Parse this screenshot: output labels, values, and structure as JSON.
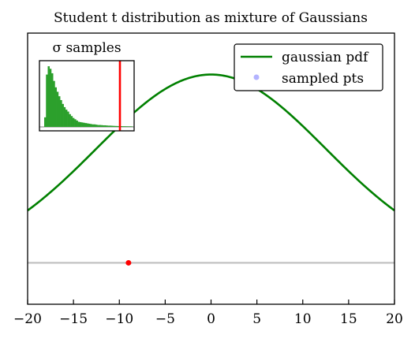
{
  "chart_data": {
    "type": "line",
    "title": "Student t distribution as mixture of Gaussians",
    "xlabel": "",
    "ylabel": "",
    "xlim": [
      -20,
      20
    ],
    "ylim": [
      -0.22,
      1.22
    ],
    "x_ticks": [
      -20,
      -15,
      -10,
      -5,
      0,
      5,
      10,
      15,
      20
    ],
    "x_tick_labels": [
      "−20",
      "−15",
      "−10",
      "−5",
      "0",
      "5",
      "10",
      "15",
      "20"
    ],
    "y_ticks_visible": false,
    "grid": false,
    "legend": {
      "position": "top-right",
      "entries": [
        {
          "label": "gaussian pdf",
          "color": "#008000",
          "marker": "line"
        },
        {
          "label": "sampled pts",
          "color": "#b3b3ff",
          "marker": "dot"
        }
      ]
    },
    "series": [
      {
        "name": "gaussian pdf",
        "kind": "curve",
        "color": "#008000",
        "mean": 0,
        "sigma": 12.5,
        "peak": 1.0
      },
      {
        "name": "sampled pts",
        "kind": "points",
        "color": "#ff0000",
        "points": [
          {
            "x": -9,
            "y": 0.0
          }
        ]
      }
    ],
    "baseline": {
      "y": 0.0,
      "color": "#bfbfbf"
    },
    "inset": {
      "title": "σ samples",
      "type": "histogram",
      "bar_color": "#2ca02c",
      "marker_line_color": "#ff0000",
      "marker_position_fraction": 0.85,
      "values": [
        0.15,
        0.82,
        0.95,
        0.91,
        0.84,
        0.72,
        0.62,
        0.55,
        0.48,
        0.42,
        0.36,
        0.31,
        0.27,
        0.24,
        0.2,
        0.17,
        0.14,
        0.12,
        0.1,
        0.08,
        0.075,
        0.07,
        0.065,
        0.06,
        0.055,
        0.05,
        0.045,
        0.04,
        0.04,
        0.035,
        0.03,
        0.03,
        0.028,
        0.025,
        0.025,
        0.022,
        0.02,
        0.02,
        0.018,
        0.016,
        0.015,
        0.014,
        0.012,
        0.012,
        0.01,
        0.01,
        0.009,
        0.008,
        0.008,
        0.007
      ]
    }
  }
}
